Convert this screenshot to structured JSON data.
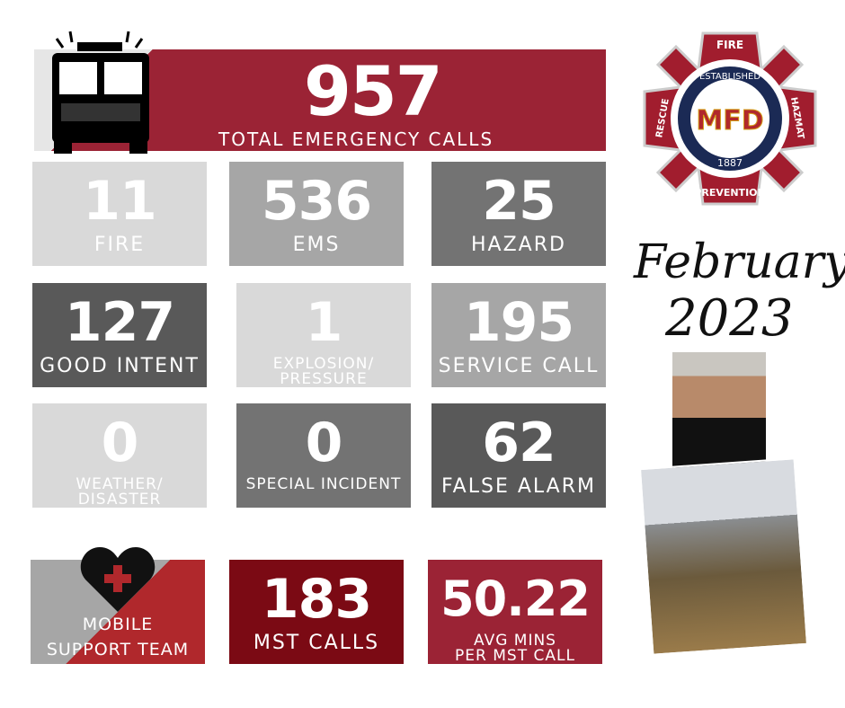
{
  "total": {
    "value": "957",
    "label": "TOTAL EMERGENCY CALLS"
  },
  "stats": [
    {
      "value": "11",
      "label": "FIRE",
      "color": "#d9d9d9"
    },
    {
      "value": "536",
      "label": "EMS",
      "color": "#a6a6a6"
    },
    {
      "value": "25",
      "label": "HAZARD",
      "color": "#737373"
    },
    {
      "value": "127",
      "label": "GOOD INTENT",
      "color": "#595959"
    },
    {
      "value": "1",
      "label": "EXPLOSION/ PRESSURE",
      "color": "#d9d9d9"
    },
    {
      "value": "195",
      "label": "SERVICE CALL",
      "color": "#a6a6a6"
    },
    {
      "value": "0",
      "label": "WEATHER/ DISASTER",
      "color": "#d9d9d9"
    },
    {
      "value": "0",
      "label": "SPECIAL INCIDENT",
      "color": "#737373"
    },
    {
      "value": "62",
      "label": "FALSE ALARM",
      "color": "#595959"
    }
  ],
  "mst": {
    "title": "MOBILE SUPPORT TEAM CALLS",
    "calls_value": "183",
    "calls_label": "MST CALLS",
    "avg_value": "50.22",
    "avg_label": "AVG MINS PER MST CALL"
  },
  "logo": {
    "top": "FIRE",
    "left": "RESCUE",
    "right": "HAZMAT",
    "bottom": "PREVENTION",
    "ring": "ESTABLISHED",
    "year": "1887",
    "monogram": "MFD"
  },
  "date": {
    "month": "February",
    "year": "2023"
  },
  "colors": {
    "brand_red": "#9b2335",
    "dark_red": "#7b0a14"
  }
}
